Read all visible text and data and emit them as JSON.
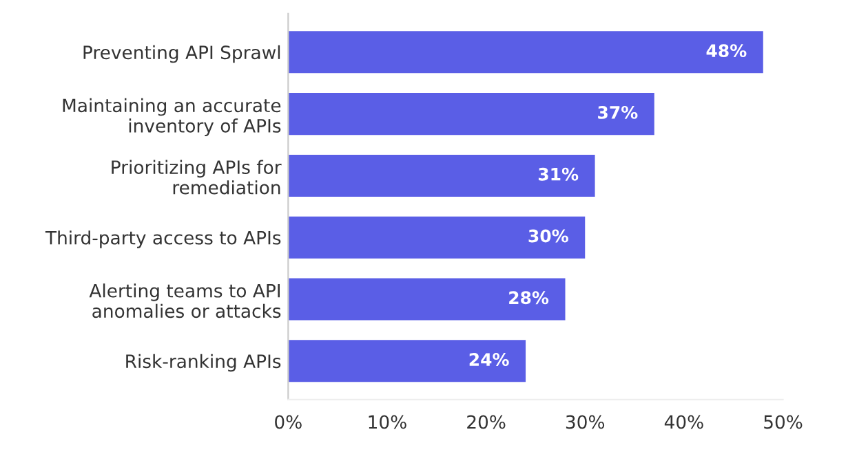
{
  "chart_data": {
    "type": "bar",
    "orientation": "horizontal",
    "categories": [
      "Preventing API Sprawl",
      "Maintaining an accurate\ninventory of APIs",
      "Prioritizing APIs for\nremediation",
      "Third-party access to APIs",
      "Alerting teams to API\nanomalies or attacks",
      "Risk-ranking APIs"
    ],
    "values": [
      48,
      37,
      31,
      30,
      28,
      24
    ],
    "value_labels": [
      "48%",
      "37%",
      "31%",
      "30%",
      "28%",
      "24%"
    ],
    "color": "#5a5ee6",
    "xlim": [
      0,
      50
    ],
    "xticks": [
      {
        "value": 0,
        "label": "0%"
      },
      {
        "value": 10,
        "label": "10%"
      },
      {
        "value": 20,
        "label": "20%"
      },
      {
        "value": 30,
        "label": "30%"
      },
      {
        "value": 40,
        "label": "40%"
      },
      {
        "value": 50,
        "label": "50%"
      }
    ],
    "grid": false
  }
}
